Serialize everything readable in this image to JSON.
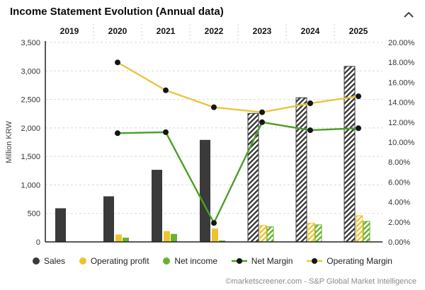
{
  "header": {
    "title": "Income Statement Evolution (Annual data)"
  },
  "footer": {
    "credit": "©marketscreener.com - S&P Global Market Intelligence"
  },
  "chart_data": {
    "type": "bar+line",
    "categories": [
      "2019",
      "2020",
      "2021",
      "2022",
      "2023",
      "2024",
      "2025"
    ],
    "estimated": [
      false,
      false,
      false,
      false,
      true,
      true,
      true
    ],
    "left_axis": {
      "label": "Million KRW",
      "min": 0,
      "max": 3500,
      "tick_step": 500,
      "tick_labels": [
        "0",
        "500",
        "1,000",
        "1,500",
        "2,000",
        "2,500",
        "3,000",
        "3,500"
      ]
    },
    "right_axis": {
      "min": 0,
      "max": 20,
      "tick_step": 2,
      "tick_labels": [
        "0.00%",
        "2.00%",
        "4.00%",
        "6.00%",
        "8.00%",
        "10.00%",
        "12.00%",
        "14.00%",
        "16.00%",
        "18.00%",
        "20.00%"
      ]
    },
    "bar_series": [
      {
        "name": "Sales",
        "axis": "left",
        "color": "#3a3a3a",
        "values": [
          590,
          800,
          1265,
          1790,
          2255,
          2530,
          3080
        ]
      },
      {
        "name": "Operating profit",
        "axis": "left",
        "color": "#efc32f",
        "values": [
          null,
          130,
          190,
          235,
          290,
          330,
          460
        ]
      },
      {
        "name": "Net income",
        "axis": "left",
        "color": "#66b32e",
        "values": [
          null,
          75,
          140,
          25,
          265,
          300,
          360
        ]
      }
    ],
    "line_series": [
      {
        "name": "Net Margin",
        "axis": "right",
        "color": "#4d9e28",
        "values": [
          null,
          10.9,
          11.0,
          1.9,
          12.0,
          11.2,
          11.4
        ]
      },
      {
        "name": "Operating Margin",
        "axis": "right",
        "color": "#ecc440",
        "values": [
          null,
          18.0,
          15.2,
          13.5,
          13.0,
          13.9,
          14.6
        ]
      }
    ],
    "marker_color": "#151515",
    "grid_color": "#d8d8d8"
  },
  "legend": {
    "items": [
      {
        "label": "Sales",
        "swatch": "circle",
        "color": "#3a3a3a"
      },
      {
        "label": "Operating profit",
        "swatch": "circle",
        "color": "#efc32f"
      },
      {
        "label": "Net income",
        "swatch": "circle",
        "color": "#66b32e"
      },
      {
        "label": "Net Margin",
        "swatch": "line-dot",
        "color": "#4d9e28"
      },
      {
        "label": "Operating Margin",
        "swatch": "line-dot",
        "color": "#ecc440"
      }
    ]
  }
}
